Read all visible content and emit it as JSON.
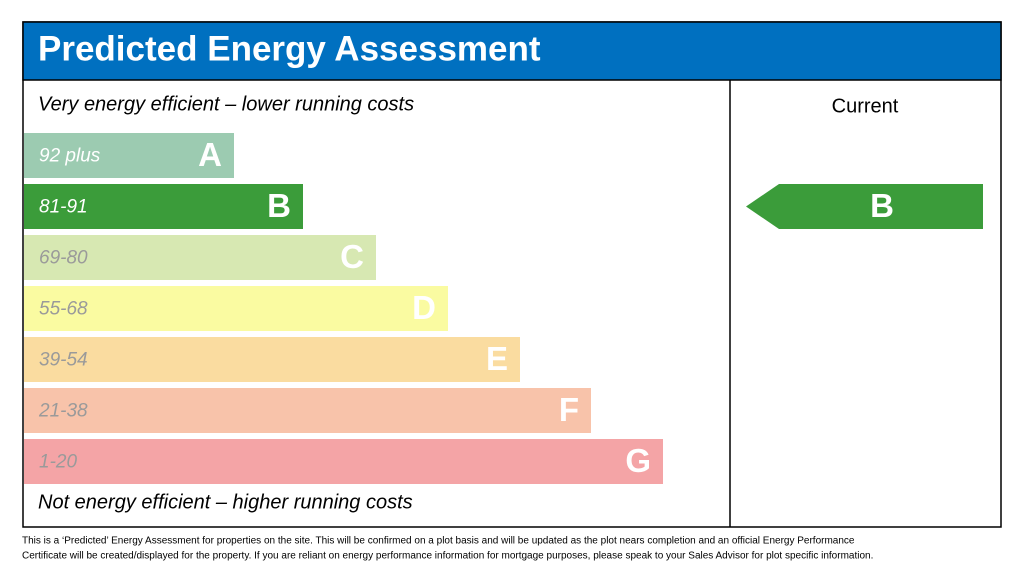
{
  "header": {
    "title": "Predicted Energy Assessment"
  },
  "top_label": "Very energy efficient – lower running costs",
  "bottom_label": "Not energy efficient – higher running costs",
  "current_header": "Current",
  "bands": [
    {
      "range": "92 plus",
      "letter": "A",
      "color": "#9ccbb1",
      "range_color": "#ffffff"
    },
    {
      "range": "81-91",
      "letter": "B",
      "color": "#3b9c3a",
      "range_color": "#ffffff"
    },
    {
      "range": "69-80",
      "letter": "C",
      "color": "#d7e8b2",
      "range_color": "#9a9a9a"
    },
    {
      "range": "55-68",
      "letter": "D",
      "color": "#fafba1",
      "range_color": "#9a9a9a"
    },
    {
      "range": "39-54",
      "letter": "E",
      "color": "#fadca0",
      "range_color": "#9a9a9a"
    },
    {
      "range": "21-38",
      "letter": "F",
      "color": "#f8c3aa",
      "range_color": "#9a9a9a"
    },
    {
      "range": "1-20",
      "letter": "G",
      "color": "#f4a4a6",
      "range_color": "#9a9a9a"
    }
  ],
  "current": {
    "rating": "B",
    "color": "#3b9c3a"
  },
  "footer": [
    "This is a ‘Predicted’ Energy Assessment for properties on the site. This will be confirmed on a plot basis and will be updated as the plot nears completion and an official Energy Performance",
    "Certificate will be created/displayed for the property. If you are reliant on energy performance information for mortgage purposes, please speak to your Sales Advisor for plot specific information."
  ]
}
